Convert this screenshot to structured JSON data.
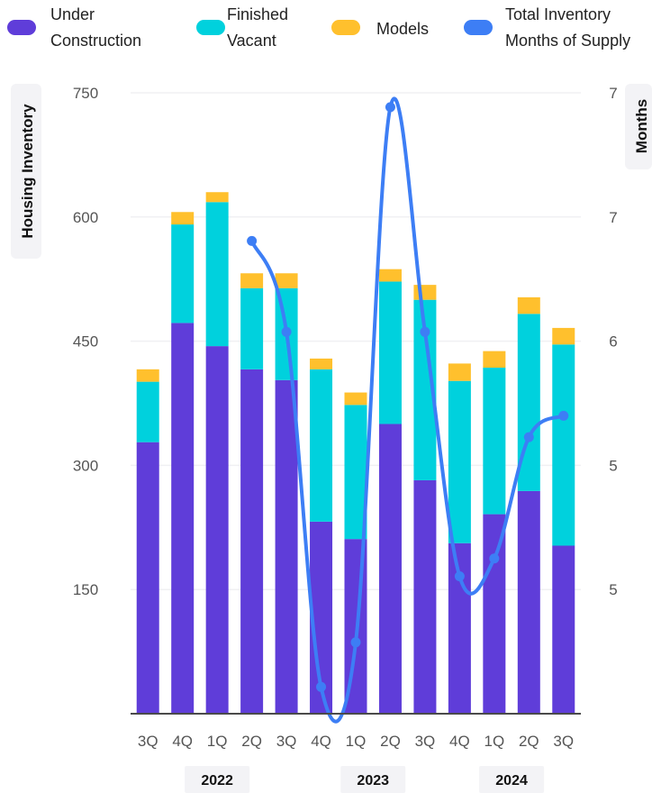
{
  "chart_data": {
    "type": "bar",
    "categories": [
      "3Q",
      "4Q",
      "1Q",
      "2Q",
      "3Q",
      "4Q",
      "1Q",
      "2Q",
      "3Q",
      "4Q",
      "1Q",
      "2Q",
      "3Q"
    ],
    "year_groups": [
      {
        "label": "2022",
        "quarters": 5
      },
      {
        "label": "2023",
        "quarters": 4
      },
      {
        "label": "2024",
        "quarters": 4
      }
    ],
    "series": [
      {
        "name": "Under\nConstruction",
        "type": "bar",
        "color": "#5f3dd9",
        "values": [
          328,
          472,
          444,
          416,
          403,
          232,
          211,
          350,
          282,
          206,
          241,
          269,
          203
        ]
      },
      {
        "name": "Finished\nVacant",
        "type": "bar",
        "color": "#00d1dd",
        "values": [
          73,
          119,
          174,
          98,
          111,
          184,
          162,
          172,
          218,
          196,
          177,
          214,
          243
        ]
      },
      {
        "name": "Models",
        "type": "bar",
        "color": "#ffc02d",
        "values": [
          15,
          15,
          12,
          18,
          18,
          13,
          15,
          15,
          18,
          21,
          20,
          20,
          20
        ]
      },
      {
        "name": "Total Inventory\nMonths of Supply",
        "type": "line",
        "color": "#3d7ef5",
        "values": [
          null,
          null,
          null,
          6.7,
          6.19,
          4.2,
          4.45,
          7.45,
          6.19,
          4.82,
          4.92,
          5.6,
          5.72
        ]
      }
    ],
    "ylabel": "Housing Inventory",
    "y2label": "Months",
    "yticks": [
      150,
      300,
      450,
      600,
      750
    ],
    "y2ticks": [
      "5",
      "5",
      "6",
      "7",
      "7"
    ],
    "ylim": [
      0,
      750
    ],
    "y2lim": [
      4.05,
      7.53
    ],
    "grid": true,
    "legend_position": "top"
  }
}
